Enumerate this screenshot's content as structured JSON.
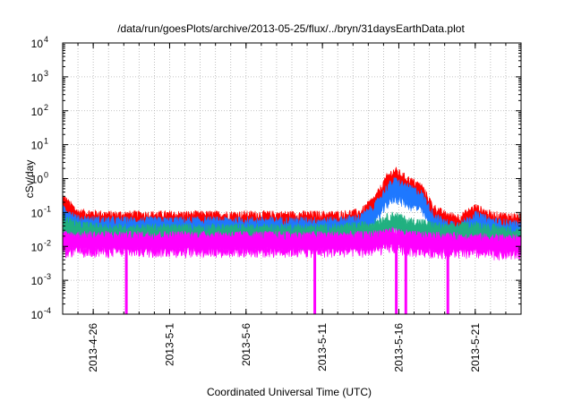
{
  "chart_data": {
    "type": "line",
    "title": "/data/run/goesPlots/archive/2013-05-25/flux/../bryn/31daysEarthData.plot",
    "xlabel": "Coordinated Universal Time (UTC)",
    "ylabel": "cSv/day",
    "x_range": [
      "2013-04-24T00:00",
      "2013-05-24T00:00"
    ],
    "ylim": [
      0.0001,
      10000
    ],
    "yscale": "log",
    "grid": true,
    "x_ticks": [
      "2013-4-26",
      "2013-5-1",
      "2013-5-6",
      "2013-5-11",
      "2013-5-16",
      "2013-5-21"
    ],
    "y_ticks": [
      {
        "base": "10",
        "exp": "-4",
        "value": 0.0001
      },
      {
        "base": "10",
        "exp": "-3",
        "value": 0.001
      },
      {
        "base": "10",
        "exp": "-2",
        "value": 0.01
      },
      {
        "base": "10",
        "exp": "-1",
        "value": 0.1
      },
      {
        "base": "10",
        "exp": "0",
        "value": 1
      },
      {
        "base": "10",
        "exp": "1",
        "value": 10
      },
      {
        "base": "10",
        "exp": "2",
        "value": 100
      },
      {
        "base": "10",
        "exp": "3",
        "value": 1000
      },
      {
        "base": "10",
        "exp": "4",
        "value": 10000
      }
    ],
    "series": [
      {
        "color": "#ff0000",
        "points": [
          [
            "2013-04-24T00:00",
            0.2
          ],
          [
            "2013-04-25T00:00",
            0.07
          ],
          [
            "2013-04-27T00:00",
            0.06
          ],
          [
            "2013-05-01T00:00",
            0.06
          ],
          [
            "2013-05-05T00:00",
            0.06
          ],
          [
            "2013-05-09T00:00",
            0.06
          ],
          [
            "2013-05-12T00:00",
            0.06
          ],
          [
            "2013-05-13T12:00",
            0.07
          ],
          [
            "2013-05-14T12:00",
            0.2
          ],
          [
            "2013-05-15T06:00",
            0.8
          ],
          [
            "2013-05-15T18:00",
            1.2
          ],
          [
            "2013-05-16T12:00",
            0.7
          ],
          [
            "2013-05-17T12:00",
            0.4
          ],
          [
            "2013-05-18T06:00",
            0.1
          ],
          [
            "2013-05-19T00:00",
            0.06
          ],
          [
            "2013-05-20T00:00",
            0.05
          ],
          [
            "2013-05-21T00:00",
            0.1
          ],
          [
            "2013-05-22T00:00",
            0.06
          ],
          [
            "2013-05-24T00:00",
            0.05
          ]
        ]
      },
      {
        "color": "#1e78ff",
        "points": [
          [
            "2013-04-24T00:00",
            0.1
          ],
          [
            "2013-04-25T00:00",
            0.045
          ],
          [
            "2013-04-27T00:00",
            0.04
          ],
          [
            "2013-05-01T00:00",
            0.04
          ],
          [
            "2013-05-05T00:00",
            0.04
          ],
          [
            "2013-05-09T00:00",
            0.04
          ],
          [
            "2013-05-12T00:00",
            0.04
          ],
          [
            "2013-05-13T12:00",
            0.05
          ],
          [
            "2013-05-14T12:00",
            0.12
          ],
          [
            "2013-05-15T06:00",
            0.4
          ],
          [
            "2013-05-15T18:00",
            0.6
          ],
          [
            "2013-05-16T12:00",
            0.4
          ],
          [
            "2013-05-17T12:00",
            0.25
          ],
          [
            "2013-05-18T06:00",
            0.06
          ],
          [
            "2013-05-19T00:00",
            0.035
          ],
          [
            "2013-05-20T00:00",
            0.03
          ],
          [
            "2013-05-21T00:00",
            0.06
          ],
          [
            "2013-05-22T00:00",
            0.04
          ],
          [
            "2013-05-24T00:00",
            0.03
          ]
        ]
      },
      {
        "color": "#20b080",
        "points": [
          [
            "2013-04-24T00:00",
            0.05
          ],
          [
            "2013-04-25T00:00",
            0.03
          ],
          [
            "2013-04-27T00:00",
            0.025
          ],
          [
            "2013-05-01T00:00",
            0.025
          ],
          [
            "2013-05-05T00:00",
            0.025
          ],
          [
            "2013-05-09T00:00",
            0.025
          ],
          [
            "2013-05-12T00:00",
            0.025
          ],
          [
            "2013-05-14T00:00",
            0.03
          ],
          [
            "2013-05-15T06:00",
            0.05
          ],
          [
            "2013-05-15T18:00",
            0.06
          ],
          [
            "2013-05-16T12:00",
            0.04
          ],
          [
            "2013-05-17T12:00",
            0.035
          ],
          [
            "2013-05-19T00:00",
            0.025
          ],
          [
            "2013-05-21T00:00",
            0.03
          ],
          [
            "2013-05-22T00:00",
            0.025
          ],
          [
            "2013-05-24T00:00",
            0.02
          ]
        ]
      },
      {
        "color": "#ff00ff",
        "points": [
          [
            "2013-04-24T00:00",
            0.015
          ],
          [
            "2013-05-01T00:00",
            0.015
          ],
          [
            "2013-05-08T00:00",
            0.015
          ],
          [
            "2013-05-14T00:00",
            0.015
          ],
          [
            "2013-05-15T12:00",
            0.02
          ],
          [
            "2013-05-17T00:00",
            0.015
          ],
          [
            "2013-05-24T00:00",
            0.012
          ]
        ],
        "dropouts": [
          "2013-04-28T04:00",
          "2013-05-10T12:00",
          "2013-05-15T20:00",
          "2013-05-16T11:00",
          "2013-05-19T05:00"
        ]
      }
    ]
  }
}
